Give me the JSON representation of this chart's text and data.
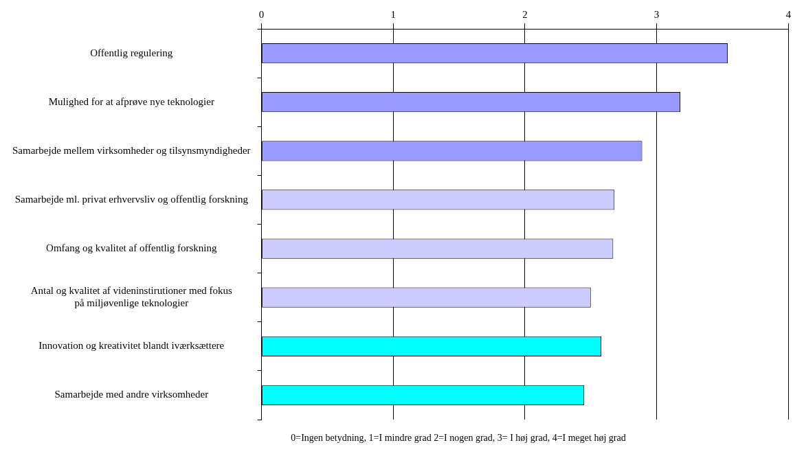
{
  "chart_data": {
    "type": "bar",
    "orientation": "horizontal",
    "categories": [
      "Offentlig regulering",
      "Mulighed for at afprøve nye teknologier",
      "Samarbejde mellem virksomheder og tilsynsmyndigheder",
      "Samarbejde ml. privat erhvervsliv og offentlig forskning",
      "Omfang og kvalitet af offentlig forskning",
      "Antal og kvalitet af videninstirutioner med fokus på miljøvenlige teknologier",
      "Innovation og kreativitet blandt iværksættere",
      "Samarbejde med andre virksomheder"
    ],
    "values": [
      3.54,
      3.18,
      2.89,
      2.68,
      2.67,
      2.5,
      2.58,
      2.45
    ],
    "colors": [
      "#9999ff",
      "#9999ff",
      "#9999ff",
      "#ccccff",
      "#ccccff",
      "#ccccff",
      "#00ffff",
      "#00ffff"
    ],
    "xlim": [
      0,
      4
    ],
    "xticks": [
      0,
      1,
      2,
      3,
      4
    ],
    "grid": "x",
    "legend": false,
    "annotations": [
      "0=Ingen betydning, 1=I mindre grad 2=I nogen grad, 3= I høj grad, 4=I meget høj grad"
    ]
  }
}
